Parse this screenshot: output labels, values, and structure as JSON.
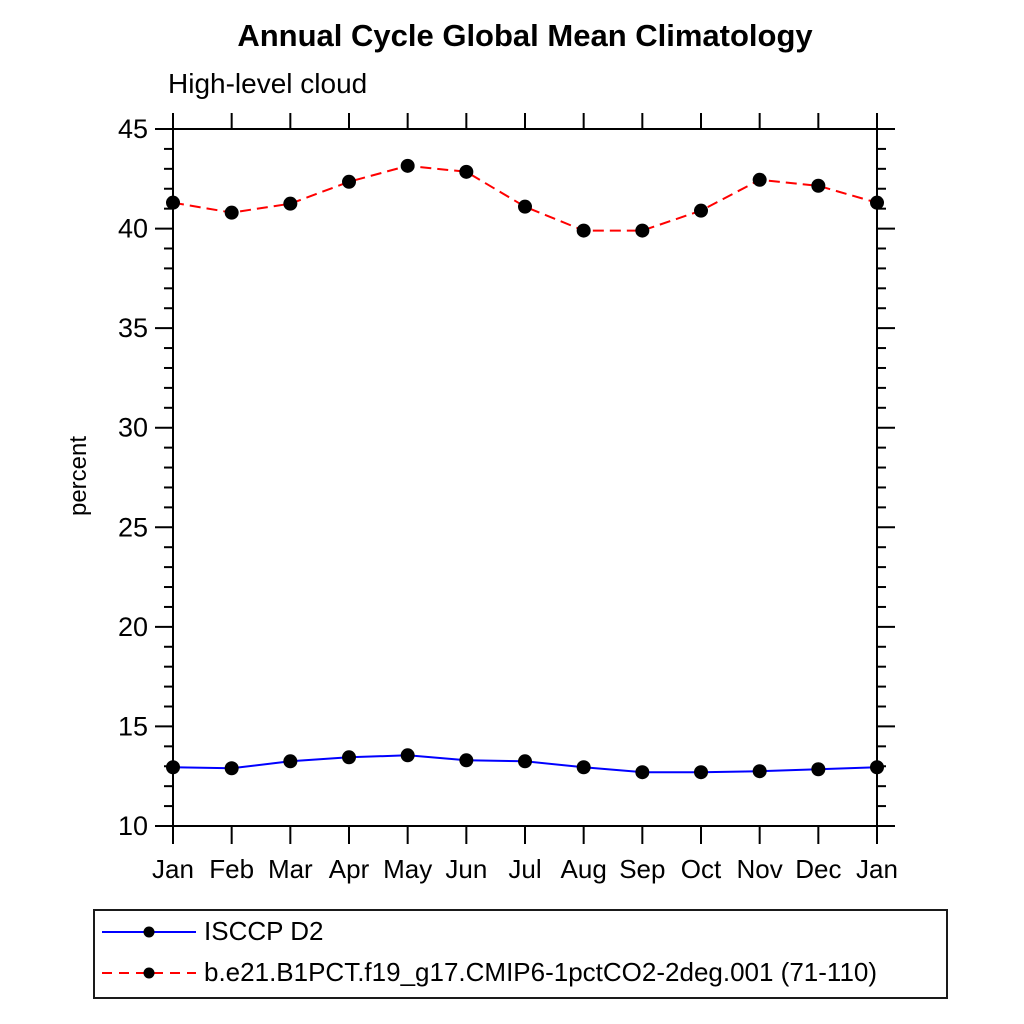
{
  "page": {
    "title": "Annual Cycle Global Mean Climatology",
    "subtitle": "High-level cloud"
  },
  "legend": {
    "entries": [
      {
        "label": "ISCCP D2"
      },
      {
        "label": "b.e21.B1PCT.f19_g17.CMIP6-1pctCO2-2deg.001 (71-110)"
      }
    ]
  },
  "colors": {
    "obs_line": "#0000ff",
    "model_line": "#ff0000",
    "marker": "#000000",
    "axis": "#000000"
  },
  "chart_data": {
    "type": "line",
    "title": "Annual Cycle Global Mean Climatology",
    "subtitle": "High-level cloud",
    "xlabel": "",
    "ylabel": "percent",
    "categories": [
      "Jan",
      "Feb",
      "Mar",
      "Apr",
      "May",
      "Jun",
      "Jul",
      "Aug",
      "Sep",
      "Oct",
      "Nov",
      "Dec",
      "Jan"
    ],
    "ylim": [
      10,
      45
    ],
    "yticks_major": [
      10,
      15,
      20,
      25,
      30,
      35,
      40,
      45
    ],
    "ytick_minor_step": 1,
    "grid": false,
    "legend_position": "bottom-left-box",
    "series": [
      {
        "name": "ISCCP D2",
        "color": "#0000ff",
        "line_style": "solid",
        "marker": "filled-circle",
        "marker_color": "#000000",
        "values": [
          12.95,
          12.9,
          13.25,
          13.45,
          13.55,
          13.3,
          13.25,
          12.95,
          12.7,
          12.7,
          12.75,
          12.85,
          12.95
        ]
      },
      {
        "name": "b.e21.B1PCT.f19_g17.CMIP6-1pctCO2-2deg.001 (71-110)",
        "color": "#ff0000",
        "line_style": "dashed",
        "marker": "filled-circle",
        "marker_color": "#000000",
        "values": [
          41.3,
          40.8,
          41.25,
          42.35,
          43.15,
          42.85,
          41.1,
          39.9,
          39.9,
          40.9,
          42.45,
          42.15,
          41.3
        ]
      }
    ]
  }
}
